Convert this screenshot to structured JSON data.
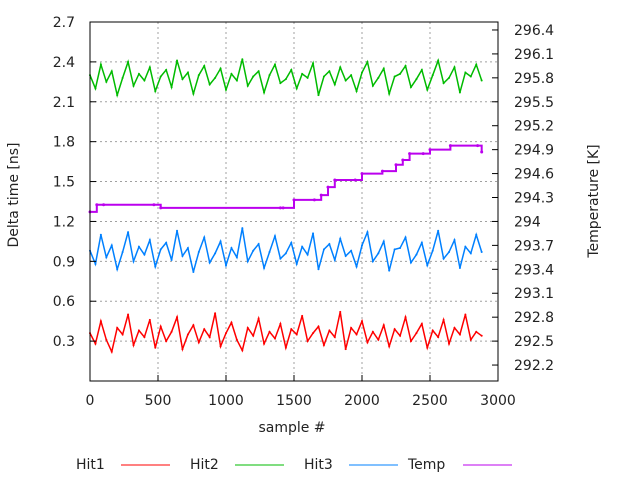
{
  "chart_data": {
    "type": "line",
    "xlabel": "sample #",
    "ylabel": "Delta time [ns]",
    "y2label": "Temperature [K]",
    "xlim": [
      0,
      3000
    ],
    "ylim": [
      0,
      2.7
    ],
    "y2lim": [
      292.0,
      296.5
    ],
    "xticks": [
      "0",
      "500",
      "1000",
      "1500",
      "2000",
      "2500",
      "3000"
    ],
    "yticks": [
      "0.3",
      "0.6",
      "0.9",
      "1.2",
      "1.5",
      "1.8",
      "2.1",
      "2.4",
      "2.7"
    ],
    "y2ticks": [
      "292.2",
      "292.5",
      "292.8",
      "293.1",
      "293.4",
      "293.7",
      "294",
      "294.3",
      "294.6",
      "294.9",
      "295.2",
      "295.5",
      "295.8",
      "296.1",
      "296.4"
    ],
    "grid": true,
    "legend_position": "bottom",
    "x_step": 40,
    "series": [
      {
        "name": "Hit1",
        "axis": "y",
        "color": "#ff0000",
        "values": [
          0.36,
          0.28,
          0.45,
          0.31,
          0.22,
          0.4,
          0.35,
          0.5,
          0.27,
          0.38,
          0.33,
          0.46,
          0.25,
          0.41,
          0.3,
          0.37,
          0.48,
          0.24,
          0.35,
          0.42,
          0.29,
          0.39,
          0.33,
          0.51,
          0.26,
          0.36,
          0.44,
          0.31,
          0.23,
          0.4,
          0.34,
          0.47,
          0.28,
          0.37,
          0.32,
          0.43,
          0.25,
          0.39,
          0.35,
          0.49,
          0.3,
          0.36,
          0.41,
          0.27,
          0.38,
          0.33,
          0.52,
          0.24,
          0.4,
          0.35,
          0.45,
          0.29,
          0.37,
          0.31,
          0.42,
          0.26,
          0.39,
          0.34,
          0.48,
          0.3,
          0.36,
          0.43,
          0.25,
          0.38,
          0.33,
          0.46,
          0.28,
          0.4,
          0.35,
          0.5,
          0.31,
          0.37,
          0.34
        ]
      },
      {
        "name": "Hit2",
        "axis": "y",
        "color": "#00bb00",
        "values": [
          2.3,
          2.2,
          2.38,
          2.25,
          2.33,
          2.15,
          2.28,
          2.4,
          2.22,
          2.31,
          2.26,
          2.36,
          2.18,
          2.29,
          2.34,
          2.21,
          2.41,
          2.27,
          2.32,
          2.16,
          2.3,
          2.37,
          2.23,
          2.28,
          2.35,
          2.19,
          2.31,
          2.26,
          2.42,
          2.22,
          2.29,
          2.33,
          2.17,
          2.3,
          2.38,
          2.24,
          2.27,
          2.34,
          2.2,
          2.31,
          2.28,
          2.39,
          2.15,
          2.29,
          2.33,
          2.23,
          2.36,
          2.26,
          2.3,
          2.18,
          2.32,
          2.4,
          2.22,
          2.28,
          2.35,
          2.16,
          2.29,
          2.31,
          2.37,
          2.21,
          2.27,
          2.34,
          2.19,
          2.3,
          2.41,
          2.24,
          2.28,
          2.36,
          2.17,
          2.32,
          2.29,
          2.38,
          2.26
        ]
      },
      {
        "name": "Hit3",
        "axis": "y",
        "color": "#0080ff",
        "values": [
          0.98,
          0.88,
          1.1,
          0.93,
          1.02,
          0.84,
          0.97,
          1.12,
          0.9,
          1.01,
          0.95,
          1.06,
          0.86,
          0.99,
          1.04,
          0.91,
          1.13,
          0.94,
          1.0,
          0.82,
          0.97,
          1.08,
          0.89,
          0.96,
          1.05,
          0.87,
          1.0,
          0.93,
          1.15,
          0.9,
          0.98,
          1.03,
          0.85,
          0.97,
          1.09,
          0.92,
          0.96,
          1.04,
          0.88,
          1.01,
          0.95,
          1.11,
          0.84,
          0.99,
          1.03,
          0.91,
          1.07,
          0.94,
          0.98,
          0.86,
          1.02,
          1.12,
          0.9,
          0.96,
          1.05,
          0.83,
          0.99,
          1.0,
          1.08,
          0.89,
          0.95,
          1.04,
          0.87,
          0.98,
          1.13,
          0.92,
          0.97,
          1.06,
          0.85,
          1.01,
          0.96,
          1.1,
          0.97
        ]
      },
      {
        "name": "Temp",
        "axis": "y2",
        "color": "#bb00ee",
        "x": [
          0,
          50,
          100,
          470,
          520,
          1400,
          1420,
          1500,
          1650,
          1700,
          1750,
          1800,
          1950,
          2000,
          2150,
          2250,
          2300,
          2350,
          2450,
          2500,
          2650,
          2850,
          2880
        ],
        "values": [
          294.12,
          294.21,
          294.21,
          294.21,
          294.17,
          294.17,
          294.17,
          294.27,
          294.27,
          294.33,
          294.43,
          294.52,
          294.52,
          294.6,
          294.63,
          294.71,
          294.77,
          294.85,
          294.85,
          294.9,
          294.95,
          294.95,
          294.87
        ]
      }
    ]
  }
}
